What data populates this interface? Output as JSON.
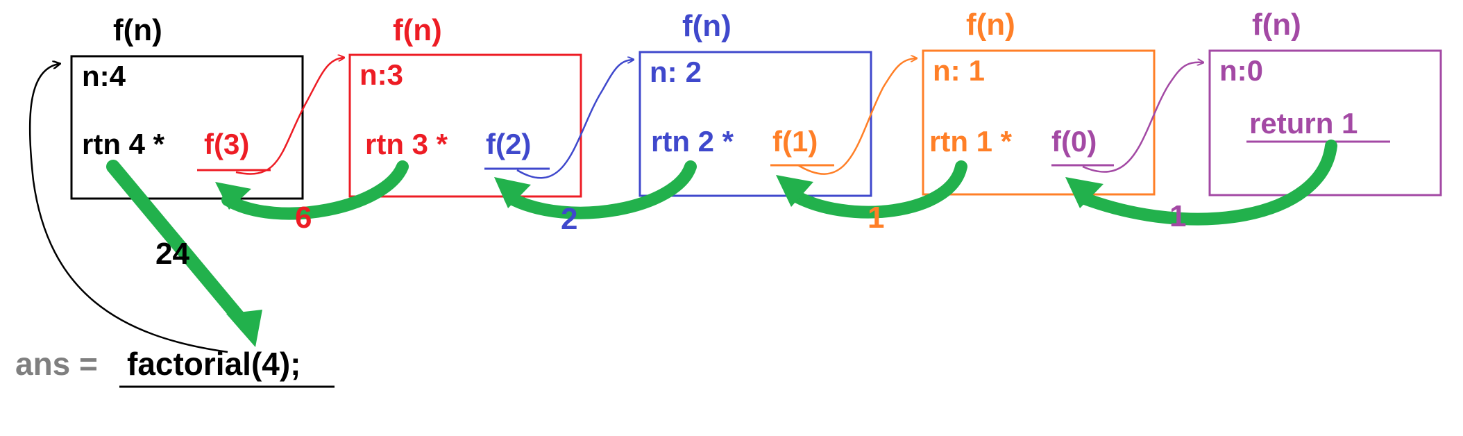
{
  "colors": {
    "black": "#000000",
    "red": "#ed1c24",
    "blue": "#3f48cc",
    "orange": "#ff7f27",
    "purple": "#a349a4",
    "green": "#22b14c",
    "gray": "#7f7f7f"
  },
  "frames": [
    {
      "title": "f(n)",
      "n_label": "n:",
      "n_value": "4",
      "rtn": "rtn 4 *",
      "call": "f(3)",
      "color": "#000000",
      "call_color": "#ed1c24"
    },
    {
      "title": "f(n)",
      "n_label": "n:",
      "n_value": "3",
      "rtn": "rtn 3 *",
      "call": "f(2)",
      "color": "#ed1c24",
      "call_color": "#3f48cc"
    },
    {
      "title": "f(n)",
      "n_label": "n:",
      "n_value": "2",
      "rtn": "rtn 2 *",
      "call": "f(1)",
      "color": "#3f48cc",
      "call_color": "#ff7f27"
    },
    {
      "title": "f(n)",
      "n_label": "n:",
      "n_value": "1",
      "rtn": "rtn 1 *",
      "call": "f(0)",
      "color": "#ff7f27",
      "call_color": "#a349a4"
    },
    {
      "title": "f(n)",
      "n_label": "n:",
      "n_value": "0",
      "base": "return 1",
      "color": "#a349a4"
    }
  ],
  "return_values": [
    {
      "value": "6",
      "color": "#ed1c24"
    },
    {
      "value": "2",
      "color": "#3f48cc"
    },
    {
      "value": "1",
      "color": "#ff7f27"
    },
    {
      "value": "1",
      "color": "#a349a4"
    }
  ],
  "final_return": {
    "value": "24",
    "color": "#000000"
  },
  "statement": {
    "prefix": "ans = ",
    "call": "factorial(4);"
  }
}
